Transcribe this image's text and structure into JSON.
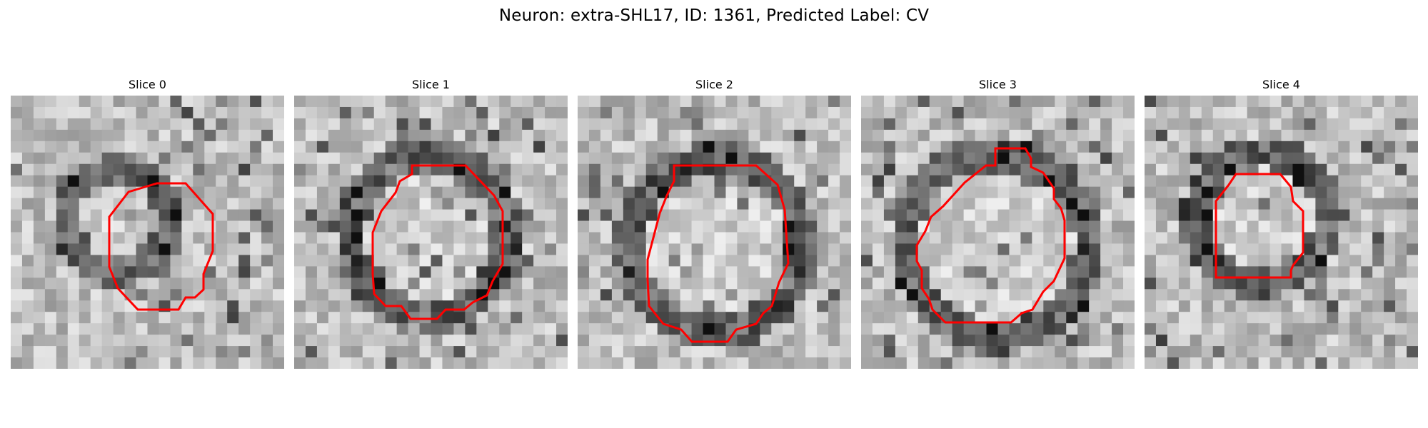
{
  "figure": {
    "title": "Neuron: extra-SHL17, ID: 1361, Predicted Label: CV",
    "contour_color": "#ff0000"
  },
  "slices": [
    {
      "label": "Slice 0"
    },
    {
      "label": "Slice 1"
    },
    {
      "label": "Slice 2"
    },
    {
      "label": "Slice 3"
    },
    {
      "label": "Slice 4"
    }
  ]
}
